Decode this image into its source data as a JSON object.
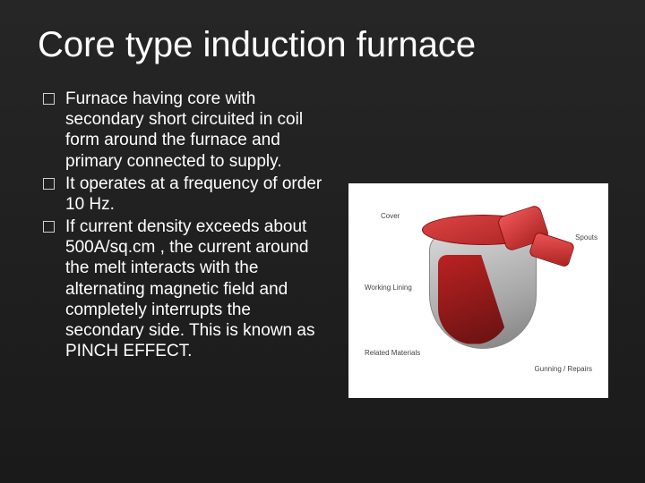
{
  "title": "Core type induction furnace",
  "bullets": [
    "Furnace having core with secondary short circuited in coil form around the furnace and primary connected to supply.",
    "It operates at a frequency of order 10 Hz.",
    "If current density exceeds about 500A/sq.cm , the current around the melt interacts with the alternating  magnetic field and completely interrupts the secondary side. This is known as PINCH EFFECT."
  ],
  "diagram": {
    "type": "infographic",
    "background_color": "#ffffff",
    "body_color_stops": [
      "#d8d8d8",
      "#a8a8a8",
      "#808080"
    ],
    "accent_color_stops": [
      "#e55",
      "#a22"
    ],
    "cut_color_stops": [
      "#bb2222",
      "#661111"
    ],
    "labels": {
      "cover": "Cover",
      "spout": "Spouts",
      "lining": "Working Lining",
      "materials": "Related Materials",
      "gunning": "Gunning / Repairs"
    },
    "label_fontsize": 8,
    "label_color": "#444444"
  },
  "slide_background_stops": [
    "#262626",
    "#1a1a1a"
  ],
  "title_fontsize": 40,
  "body_fontsize": 19,
  "text_color": "#ffffff",
  "checkbox_border_color": "#cfcfcf"
}
